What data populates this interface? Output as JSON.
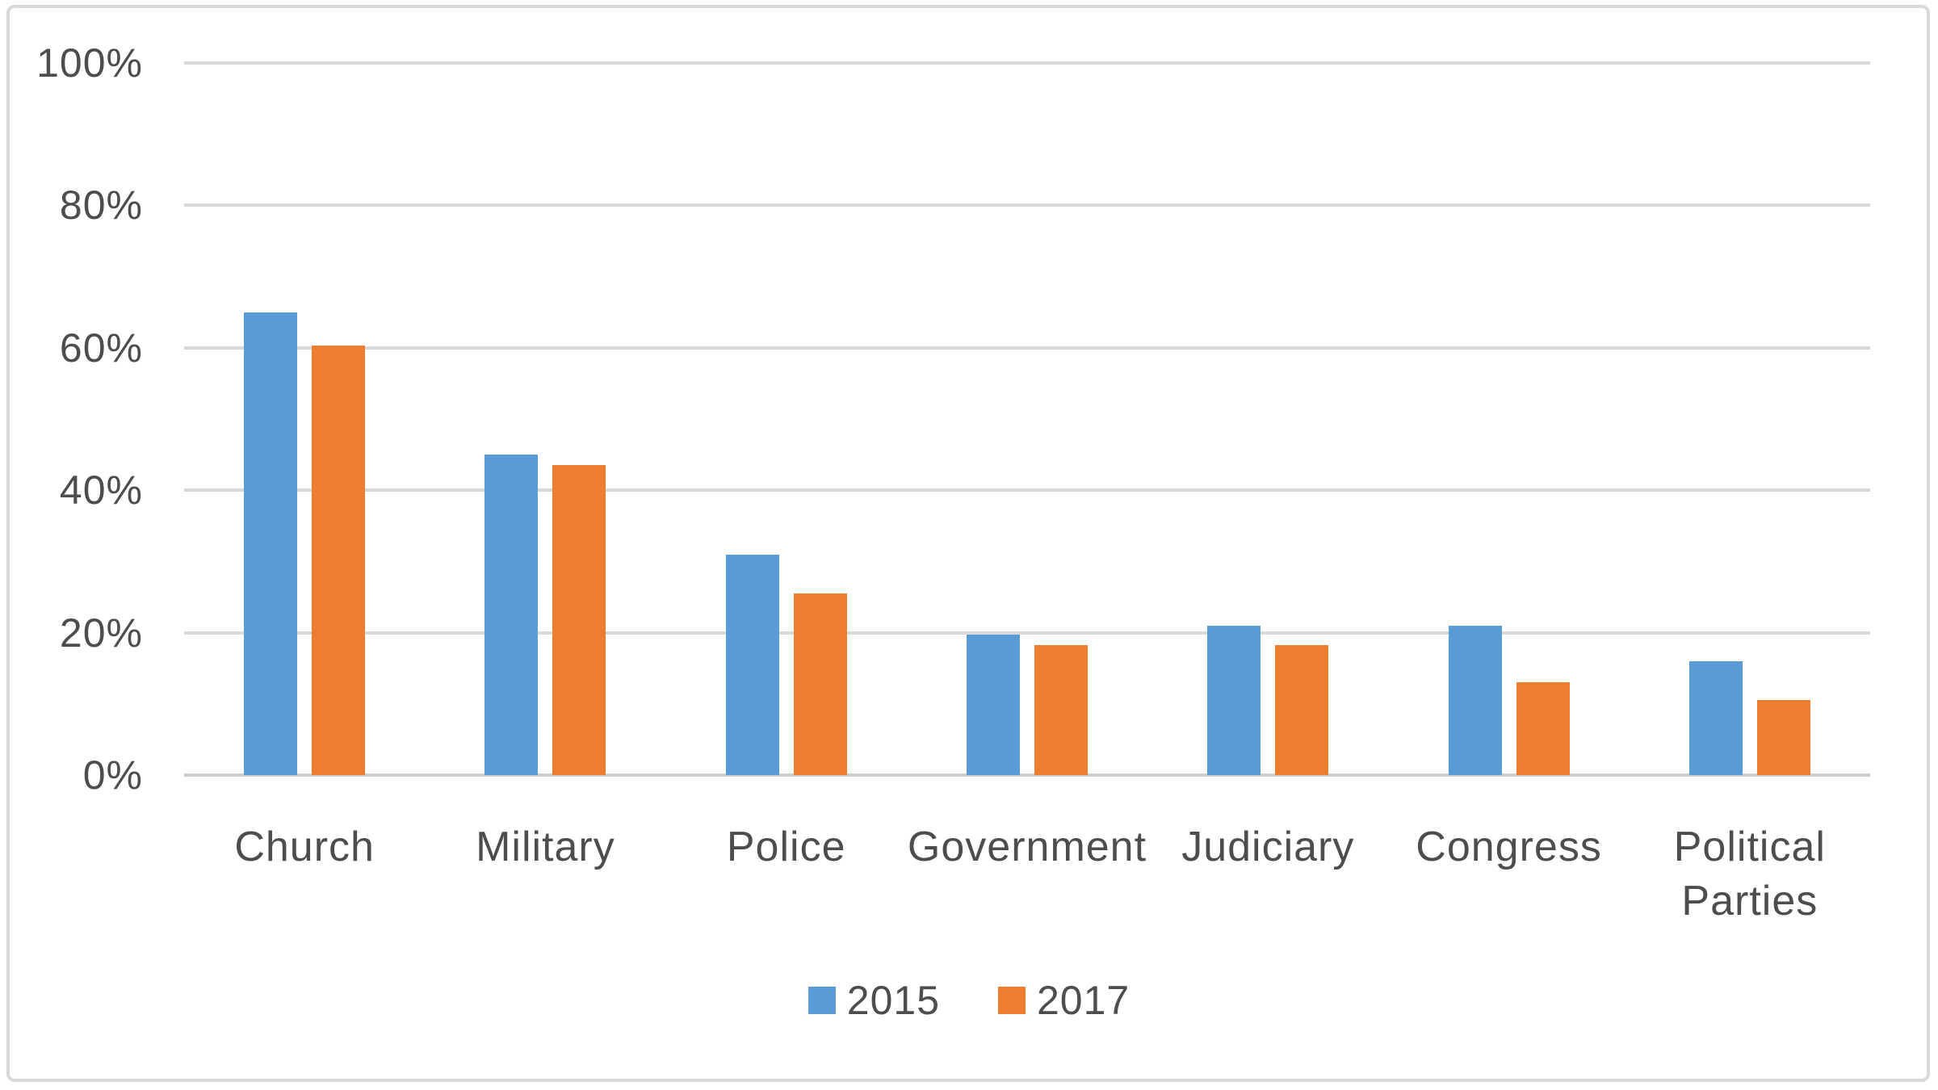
{
  "chart_data": {
    "type": "bar",
    "title": "",
    "xlabel": "",
    "ylabel": "",
    "categories": [
      "Church",
      "Military",
      "Police",
      "Government",
      "Judiciary",
      "Congress",
      "Political Parties"
    ],
    "series": [
      {
        "name": "2015",
        "color": "#5b9bd5",
        "values": [
          65,
          45,
          31,
          19.7,
          21,
          21,
          16
        ]
      },
      {
        "name": "2017",
        "color": "#ed7d31",
        "values": [
          60.3,
          43.5,
          25.5,
          18.2,
          18.2,
          13,
          10.5
        ]
      }
    ],
    "ylim": [
      0,
      100
    ],
    "y_ticks": [
      {
        "value": 0,
        "label": "0%"
      },
      {
        "value": 20,
        "label": "20%"
      },
      {
        "value": 40,
        "label": "40%"
      },
      {
        "value": 60,
        "label": "60%"
      },
      {
        "value": 80,
        "label": "80%"
      },
      {
        "value": 100,
        "label": "100%"
      }
    ],
    "grid": true,
    "legend_position": "bottom-center"
  },
  "style": {
    "series_colors": {
      "2015": "#5b9bd5",
      "2017": "#ed7d31"
    },
    "gridline_color": "#d9d9d9",
    "axis_line_color": "#cdcdcd",
    "text_color": "#4d4d4d",
    "border_color": "#d9d9d9",
    "background": "#ffffff"
  }
}
